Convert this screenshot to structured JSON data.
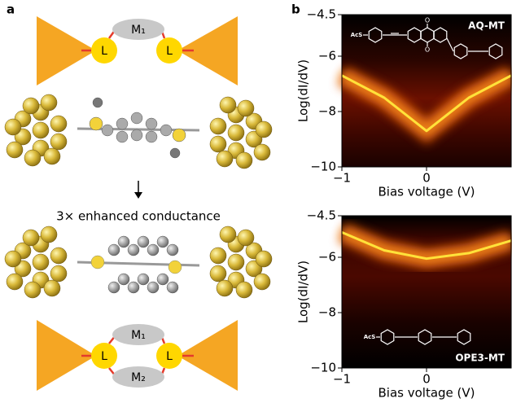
{
  "panel_a": {
    "label": "a",
    "top_diagram": {
      "molecule": "M₁",
      "linkers": [
        "L",
        "L"
      ]
    },
    "caption": "3× enhanced conductance",
    "bottom_diagram": {
      "molecules": [
        "M₁",
        "M₂"
      ],
      "linkers": [
        "L",
        "L"
      ]
    }
  },
  "chart_data": [
    {
      "type": "heatmap",
      "panel_label": "b",
      "annotation": "AQ-MT",
      "structure_labels": [
        "AcS",
        "O",
        "O"
      ],
      "xlabel": "Bias voltage (V)",
      "ylabel": "Log(dI/dV)",
      "xlim": [
        -1,
        1
      ],
      "ylim": [
        -10,
        -4.5
      ],
      "xticks": [
        {
          "value": -1,
          "label": "−1"
        },
        0
      ],
      "yticks": [
        {
          "value": -4.5,
          "label": "−4.5"
        },
        {
          "value": -6,
          "label": "−6"
        },
        {
          "value": -8,
          "label": "−8"
        },
        {
          "value": -10,
          "label": "−10"
        }
      ],
      "x": [
        -1,
        -0.5,
        0,
        0.5,
        1
      ],
      "values": [
        -6.7,
        -7.5,
        -8.7,
        -7.5,
        -6.7
      ],
      "color": "#ffe23a"
    },
    {
      "type": "heatmap",
      "annotation": "OPE3-MT",
      "structure_labels": [
        "AcS"
      ],
      "xlabel": "Bias voltage (V)",
      "ylabel": "Log(dI/dV)",
      "xlim": [
        -1,
        1
      ],
      "ylim": [
        -10,
        -4.5
      ],
      "xticks": [
        {
          "value": -1,
          "label": "−1"
        },
        0
      ],
      "yticks": [
        {
          "value": -4.5,
          "label": "−4.5"
        },
        {
          "value": -6,
          "label": "−6"
        },
        {
          "value": -8,
          "label": "−8"
        },
        {
          "value": -10,
          "label": "−10"
        }
      ],
      "x": [
        -1,
        -0.5,
        0,
        0.5,
        1
      ],
      "values": [
        -5.1,
        -5.75,
        -6.05,
        -5.85,
        -5.4
      ],
      "color": "#ffe23a"
    }
  ]
}
